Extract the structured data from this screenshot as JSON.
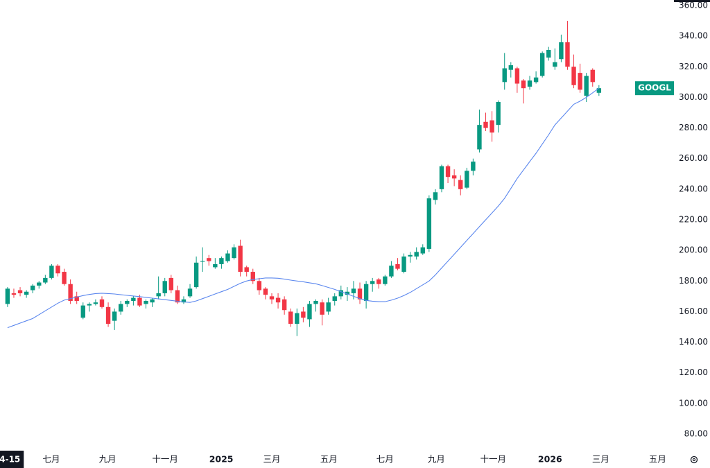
{
  "chart_data": {
    "type": "candlestick",
    "symbol": "GOOGL",
    "up_color": "#089981",
    "down_color": "#f23645",
    "open": [
      165,
      172,
      174,
      171,
      174,
      177,
      179,
      182,
      190,
      186,
      178,
      170,
      156,
      164,
      165,
      168,
      163,
      154,
      160,
      165,
      167,
      169,
      165,
      166,
      170,
      172,
      182,
      174,
      166,
      170,
      176,
      193,
      195,
      189,
      191,
      193,
      195,
      203,
      189,
      186,
      180,
      175,
      170,
      169,
      168,
      160,
      152,
      160,
      155,
      165,
      166,
      160,
      167,
      170,
      171,
      172,
      175,
      167,
      178,
      181,
      178,
      183,
      191,
      186,
      196,
      196,
      198,
      201,
      233,
      240,
      255,
      249,
      246,
      241,
      252,
      266,
      284,
      285,
      282,
      310,
      318,
      319,
      311,
      307,
      310,
      314,
      326,
      320,
      325,
      336,
      320,
      316,
      301,
      318,
      303
    ],
    "high": [
      176,
      175,
      176,
      174,
      178,
      180,
      184,
      191,
      191,
      188,
      181,
      173,
      166,
      166,
      168,
      170,
      166,
      162,
      167,
      168,
      170,
      171,
      168,
      169,
      183,
      182,
      184,
      177,
      170,
      178,
      196,
      202,
      197,
      195,
      196,
      200,
      204,
      207,
      190,
      188,
      182,
      176,
      172,
      172,
      170,
      162,
      162,
      163,
      167,
      168,
      168,
      169,
      172,
      177,
      176,
      180,
      179,
      180,
      182,
      182,
      184,
      193,
      195,
      198,
      199,
      202,
      204,
      236,
      240,
      256,
      256,
      253,
      249,
      254,
      260,
      292,
      290,
      291,
      298,
      329,
      323,
      320,
      312,
      314,
      317,
      330,
      333,
      332,
      341,
      350,
      328,
      322,
      316,
      319,
      308
    ],
    "low": [
      163,
      169,
      170,
      169,
      172,
      175,
      178,
      181,
      183,
      177,
      165,
      165,
      155,
      160,
      164,
      162,
      150,
      148,
      158,
      163,
      164,
      163,
      162,
      163,
      168,
      170,
      172,
      165,
      165,
      169,
      175,
      186,
      190,
      188,
      188,
      192,
      194,
      183,
      183,
      178,
      171,
      168,
      165,
      162,
      158,
      150,
      144,
      153,
      150,
      160,
      151,
      158,
      164,
      168,
      167,
      168,
      165,
      162,
      173,
      175,
      177,
      182,
      187,
      185,
      192,
      194,
      197,
      199,
      230,
      238,
      244,
      242,
      236,
      240,
      249,
      264,
      278,
      271,
      277,
      305,
      313,
      303,
      296,
      305,
      309,
      313,
      324,
      318,
      323,
      318,
      306,
      303,
      297,
      307,
      301
    ],
    "close": [
      175,
      171,
      172,
      173,
      177,
      179,
      182,
      190,
      185,
      178,
      167,
      167,
      164,
      165,
      166,
      163,
      152,
      160,
      165,
      167,
      169,
      164,
      167,
      168,
      172,
      180,
      174,
      166,
      168,
      175,
      192,
      193,
      193,
      191,
      195,
      198,
      202,
      186,
      186,
      180,
      174,
      171,
      168,
      166,
      161,
      152,
      159,
      156,
      165,
      167,
      158,
      166,
      170,
      174,
      173,
      175,
      168,
      178,
      180,
      178,
      183,
      190,
      188,
      196,
      197,
      199,
      202,
      234,
      238,
      255,
      248,
      247,
      240,
      252,
      258,
      282,
      280,
      277,
      297,
      319,
      321,
      309,
      306,
      311,
      313,
      329,
      331,
      323,
      336,
      320,
      308,
      305,
      314,
      310,
      306
    ],
    "ma": {
      "color": "#5b87ee",
      "values": [
        149.5,
        151,
        152.5,
        154,
        155.5,
        158,
        160.5,
        163,
        165.5,
        167.5,
        168.5,
        169.5,
        170.5,
        171.2,
        171.8,
        172,
        171.8,
        171.5,
        171,
        170.6,
        170.2,
        169.8,
        169.3,
        168.8,
        168.3,
        167.8,
        167.3,
        166.8,
        166.3,
        166,
        167,
        168.5,
        170,
        171.5,
        173,
        174.5,
        176.5,
        178.5,
        180,
        181,
        181.5,
        182,
        182,
        181.8,
        181.2,
        180.6,
        180,
        179.5,
        178.8,
        178.2,
        177,
        175.8,
        174.5,
        173,
        171.5,
        170,
        168.5,
        167.3,
        166.8,
        166.5,
        166.5,
        167.5,
        168.8,
        170.5,
        172.5,
        175,
        177.5,
        180,
        184,
        188.5,
        193,
        197.5,
        202,
        206.5,
        211,
        215.5,
        220,
        224.5,
        229,
        234,
        240.5,
        247,
        252.5,
        258,
        263.5,
        269.5,
        275.5,
        282,
        286.5,
        291,
        295.5,
        297.5,
        300,
        303,
        306
      ]
    },
    "xlim": [
      -1.2,
      105.7
    ],
    "xticks": [
      {
        "value": 6.96,
        "label": "七月"
      },
      {
        "value": 15.89,
        "label": "九月"
      },
      {
        "value": 25.04,
        "label": "十一月"
      },
      {
        "value": 33.97,
        "label": "2025"
      },
      {
        "value": 42.0,
        "label": "三月"
      },
      {
        "value": 51.06,
        "label": "五月"
      },
      {
        "value": 59.99,
        "label": "七月"
      },
      {
        "value": 68.15,
        "label": "九月"
      },
      {
        "value": 77.19,
        "label": "十一月"
      },
      {
        "value": 86.23,
        "label": "2026"
      },
      {
        "value": 94.28,
        "label": "三月"
      },
      {
        "value": 103.32,
        "label": "五月"
      }
    ],
    "crosshair_x": {
      "value": -1.5,
      "label": "4-15"
    },
    "ylim": [
      80,
      360
    ],
    "yticks": [
      {
        "value": 80,
        "label": "80.00"
      },
      {
        "value": 100,
        "label": "100.00"
      },
      {
        "value": 120,
        "label": "120.00"
      },
      {
        "value": 140,
        "label": "140.00"
      },
      {
        "value": 160,
        "label": "160.00"
      },
      {
        "value": 180,
        "label": "180.00"
      },
      {
        "value": 200,
        "label": "200.00"
      },
      {
        "value": 220,
        "label": "220.00"
      },
      {
        "value": 240,
        "label": "240.00"
      },
      {
        "value": 260,
        "label": "260.00"
      },
      {
        "value": 280,
        "label": "280.00"
      },
      {
        "value": 300,
        "label": "300.00"
      },
      {
        "value": 320,
        "label": "320.00"
      },
      {
        "value": 340,
        "label": "340.00"
      },
      {
        "value": 360,
        "label": "360.00"
      }
    ]
  }
}
